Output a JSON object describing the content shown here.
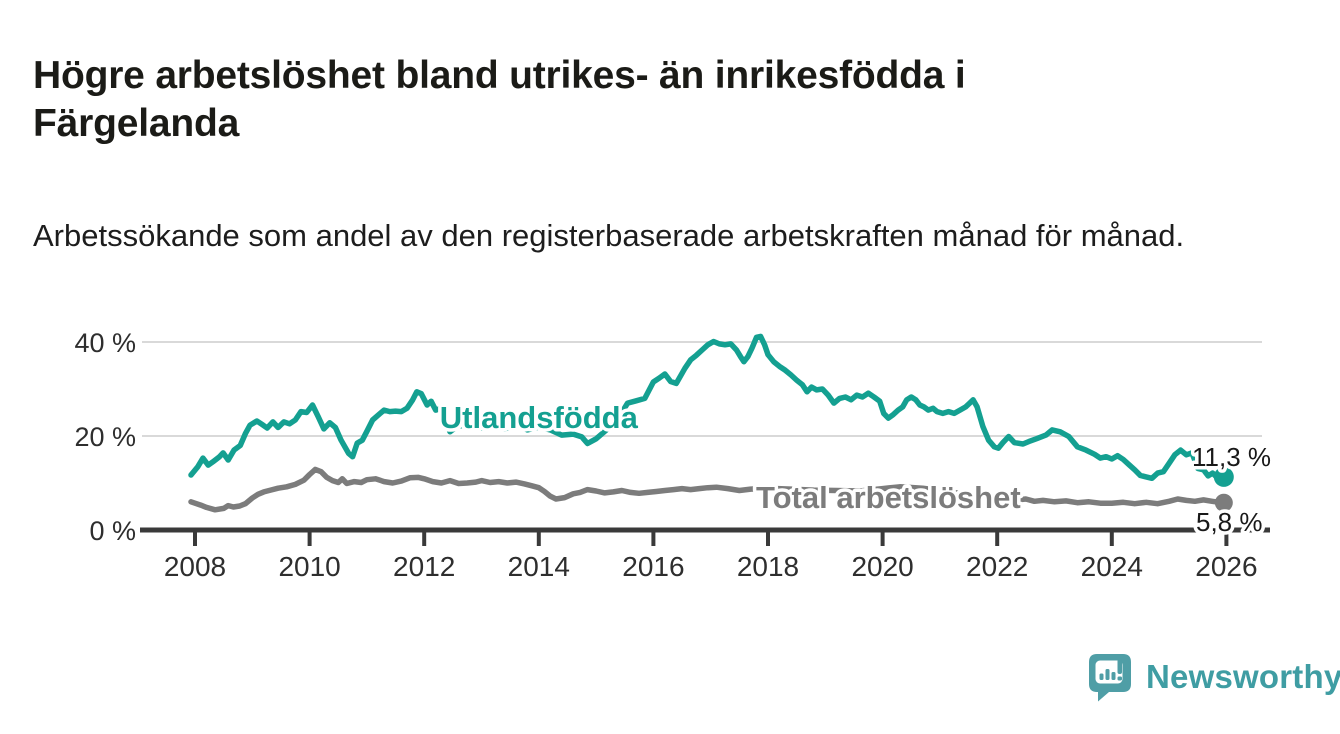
{
  "header": {
    "title": "Högre arbetslöshet bland utrikes- än inrikesfödda i Färgelanda",
    "subtitle": "Arbetssökande som andel av den registerbaserade arbetskraften månad för månad."
  },
  "branding": {
    "logo_text": "Newsworthy",
    "logo_icon": "bar-chart-speech-bubble-icon"
  },
  "colors": {
    "foreign_born_line": "#14a091",
    "total_line": "#7c7c7c",
    "axis": "#3a3a3a",
    "grid": "#d9d9d9",
    "tick_text": "#2e2e2e",
    "value_text": "#191919",
    "logo_teal": "#4f9ea6",
    "logo_text_teal": "#3f9da3",
    "background": "#ffffff"
  },
  "chart_data": {
    "type": "line",
    "unit": "%",
    "grid": "horizontal",
    "legend_position": "inline-labels",
    "ylim": [
      0,
      44
    ],
    "xlim_years": [
      2007.9,
      2026.75
    ],
    "x_ticks": [
      2008,
      2010,
      2012,
      2014,
      2016,
      2018,
      2020,
      2022,
      2024,
      2026
    ],
    "y_ticks": [
      {
        "value": 0,
        "label": "0 %"
      },
      {
        "value": 20,
        "label": "20 %"
      },
      {
        "value": 40,
        "label": "40 %"
      }
    ],
    "series": [
      {
        "name": "Utlandsfödda",
        "color": "#14a091",
        "end_label": "11,3 %",
        "name_label_anchor": {
          "year": 2014.0,
          "value": 21.7
        },
        "points": [
          [
            2007.93,
            11.7
          ],
          [
            2008.05,
            13.5
          ],
          [
            2008.14,
            15.3
          ],
          [
            2008.23,
            13.8
          ],
          [
            2008.31,
            14.5
          ],
          [
            2008.42,
            15.5
          ],
          [
            2008.49,
            16.4
          ],
          [
            2008.58,
            14.9
          ],
          [
            2008.68,
            17.0
          ],
          [
            2008.79,
            18.0
          ],
          [
            2008.88,
            20.5
          ],
          [
            2008.96,
            22.3
          ],
          [
            2009.08,
            23.2
          ],
          [
            2009.19,
            22.3
          ],
          [
            2009.26,
            21.7
          ],
          [
            2009.36,
            23.0
          ],
          [
            2009.45,
            21.8
          ],
          [
            2009.55,
            23.0
          ],
          [
            2009.65,
            22.6
          ],
          [
            2009.75,
            23.4
          ],
          [
            2009.85,
            25.2
          ],
          [
            2009.95,
            25.0
          ],
          [
            2010.05,
            26.6
          ],
          [
            2010.15,
            24.1
          ],
          [
            2010.25,
            21.5
          ],
          [
            2010.35,
            22.8
          ],
          [
            2010.45,
            21.8
          ],
          [
            2010.55,
            19.1
          ],
          [
            2010.68,
            16.3
          ],
          [
            2010.75,
            15.6
          ],
          [
            2010.83,
            18.5
          ],
          [
            2010.92,
            19.1
          ],
          [
            2011.0,
            21.0
          ],
          [
            2011.1,
            23.4
          ],
          [
            2011.2,
            24.5
          ],
          [
            2011.3,
            25.5
          ],
          [
            2011.4,
            25.2
          ],
          [
            2011.5,
            25.3
          ],
          [
            2011.6,
            25.2
          ],
          [
            2011.7,
            25.9
          ],
          [
            2011.8,
            27.7
          ],
          [
            2011.87,
            29.4
          ],
          [
            2011.95,
            29.0
          ],
          [
            2012.05,
            26.6
          ],
          [
            2012.12,
            27.4
          ],
          [
            2012.2,
            25.5
          ],
          [
            2012.3,
            25.9
          ],
          [
            2012.45,
            20.9
          ],
          [
            2012.6,
            22.3
          ],
          [
            2012.8,
            22.0
          ],
          [
            2013.0,
            21.7
          ],
          [
            2013.2,
            22.3
          ],
          [
            2013.4,
            21.5
          ],
          [
            2013.6,
            22.5
          ],
          [
            2013.8,
            21.3
          ],
          [
            2014.0,
            21.9
          ],
          [
            2014.2,
            21.3
          ],
          [
            2014.4,
            20.2
          ],
          [
            2014.6,
            20.4
          ],
          [
            2014.75,
            19.8
          ],
          [
            2014.85,
            18.4
          ],
          [
            2015.0,
            19.4
          ],
          [
            2015.2,
            21.5
          ],
          [
            2015.4,
            24.0
          ],
          [
            2015.55,
            27.0
          ],
          [
            2015.7,
            27.5
          ],
          [
            2015.85,
            28.0
          ],
          [
            2016.0,
            31.5
          ],
          [
            2016.1,
            32.3
          ],
          [
            2016.2,
            33.2
          ],
          [
            2016.3,
            31.6
          ],
          [
            2016.4,
            31.2
          ],
          [
            2016.55,
            34.4
          ],
          [
            2016.65,
            36.2
          ],
          [
            2016.75,
            37.2
          ],
          [
            2016.85,
            38.3
          ],
          [
            2016.95,
            39.4
          ],
          [
            2017.05,
            40.1
          ],
          [
            2017.15,
            39.6
          ],
          [
            2017.25,
            39.4
          ],
          [
            2017.35,
            39.6
          ],
          [
            2017.45,
            38.3
          ],
          [
            2017.52,
            36.9
          ],
          [
            2017.58,
            35.8
          ],
          [
            2017.65,
            36.9
          ],
          [
            2017.72,
            38.7
          ],
          [
            2017.8,
            41.0
          ],
          [
            2017.87,
            41.2
          ],
          [
            2017.94,
            39.4
          ],
          [
            2018.0,
            37.3
          ],
          [
            2018.1,
            35.8
          ],
          [
            2018.2,
            34.8
          ],
          [
            2018.3,
            34.0
          ],
          [
            2018.4,
            33.0
          ],
          [
            2018.5,
            31.9
          ],
          [
            2018.6,
            30.9
          ],
          [
            2018.68,
            29.4
          ],
          [
            2018.76,
            30.4
          ],
          [
            2018.85,
            29.8
          ],
          [
            2018.95,
            30.0
          ],
          [
            2019.05,
            28.7
          ],
          [
            2019.15,
            27.0
          ],
          [
            2019.25,
            28.0
          ],
          [
            2019.35,
            28.3
          ],
          [
            2019.45,
            27.7
          ],
          [
            2019.55,
            28.7
          ],
          [
            2019.65,
            28.3
          ],
          [
            2019.75,
            29.1
          ],
          [
            2019.85,
            28.3
          ],
          [
            2019.95,
            27.4
          ],
          [
            2020.02,
            24.8
          ],
          [
            2020.1,
            23.8
          ],
          [
            2020.18,
            24.5
          ],
          [
            2020.27,
            25.5
          ],
          [
            2020.35,
            26.2
          ],
          [
            2020.42,
            27.7
          ],
          [
            2020.5,
            28.3
          ],
          [
            2020.58,
            27.7
          ],
          [
            2020.65,
            26.6
          ],
          [
            2020.72,
            26.2
          ],
          [
            2020.8,
            25.5
          ],
          [
            2020.88,
            25.9
          ],
          [
            2020.95,
            25.2
          ],
          [
            2021.05,
            24.8
          ],
          [
            2021.15,
            25.2
          ],
          [
            2021.25,
            24.8
          ],
          [
            2021.35,
            25.5
          ],
          [
            2021.45,
            26.2
          ],
          [
            2021.52,
            27.0
          ],
          [
            2021.58,
            27.7
          ],
          [
            2021.65,
            26.2
          ],
          [
            2021.75,
            22.0
          ],
          [
            2021.85,
            19.1
          ],
          [
            2021.95,
            17.7
          ],
          [
            2022.02,
            17.4
          ],
          [
            2022.1,
            18.6
          ],
          [
            2022.2,
            19.9
          ],
          [
            2022.3,
            18.6
          ],
          [
            2022.45,
            18.3
          ],
          [
            2022.55,
            18.8
          ],
          [
            2022.7,
            19.5
          ],
          [
            2022.85,
            20.2
          ],
          [
            2022.96,
            21.3
          ],
          [
            2023.1,
            20.9
          ],
          [
            2023.25,
            19.9
          ],
          [
            2023.4,
            17.7
          ],
          [
            2023.55,
            17.0
          ],
          [
            2023.7,
            16.1
          ],
          [
            2023.8,
            15.3
          ],
          [
            2023.9,
            15.6
          ],
          [
            2024.0,
            15.1
          ],
          [
            2024.1,
            15.8
          ],
          [
            2024.2,
            15.0
          ],
          [
            2024.3,
            13.9
          ],
          [
            2024.4,
            12.8
          ],
          [
            2024.5,
            11.6
          ],
          [
            2024.6,
            11.3
          ],
          [
            2024.7,
            11.0
          ],
          [
            2024.8,
            12.1
          ],
          [
            2024.9,
            12.4
          ],
          [
            2025.0,
            14.2
          ],
          [
            2025.1,
            16.0
          ],
          [
            2025.2,
            17.0
          ],
          [
            2025.3,
            16.0
          ],
          [
            2025.4,
            16.4
          ],
          [
            2025.5,
            13.1
          ],
          [
            2025.6,
            12.8
          ],
          [
            2025.68,
            11.5
          ],
          [
            2025.76,
            12.1
          ],
          [
            2025.85,
            11.0
          ],
          [
            2025.92,
            11.3
          ]
        ]
      },
      {
        "name": "Total arbetslöshet",
        "color": "#7c7c7c",
        "end_label": "5,8 %",
        "name_label_anchor": {
          "year": 2020.1,
          "value": 4.7
        },
        "points": [
          [
            2007.93,
            6.0
          ],
          [
            2008.0,
            5.7
          ],
          [
            2008.1,
            5.3
          ],
          [
            2008.2,
            4.8
          ],
          [
            2008.35,
            4.3
          ],
          [
            2008.5,
            4.6
          ],
          [
            2008.58,
            5.2
          ],
          [
            2008.67,
            4.9
          ],
          [
            2008.78,
            5.1
          ],
          [
            2008.88,
            5.6
          ],
          [
            2009.0,
            6.8
          ],
          [
            2009.1,
            7.6
          ],
          [
            2009.2,
            8.1
          ],
          [
            2009.32,
            8.5
          ],
          [
            2009.45,
            8.9
          ],
          [
            2009.6,
            9.2
          ],
          [
            2009.75,
            9.7
          ],
          [
            2009.9,
            10.6
          ],
          [
            2010.0,
            11.8
          ],
          [
            2010.1,
            12.9
          ],
          [
            2010.2,
            12.4
          ],
          [
            2010.3,
            11.2
          ],
          [
            2010.4,
            10.5
          ],
          [
            2010.5,
            10.1
          ],
          [
            2010.57,
            10.9
          ],
          [
            2010.65,
            9.9
          ],
          [
            2010.78,
            10.3
          ],
          [
            2010.9,
            10.1
          ],
          [
            2011.0,
            10.7
          ],
          [
            2011.15,
            10.9
          ],
          [
            2011.3,
            10.3
          ],
          [
            2011.45,
            10.0
          ],
          [
            2011.6,
            10.4
          ],
          [
            2011.75,
            11.1
          ],
          [
            2011.9,
            11.2
          ],
          [
            2012.0,
            10.9
          ],
          [
            2012.15,
            10.3
          ],
          [
            2012.3,
            10.0
          ],
          [
            2012.45,
            10.5
          ],
          [
            2012.6,
            9.9
          ],
          [
            2012.75,
            10.0
          ],
          [
            2012.9,
            10.2
          ],
          [
            2013.0,
            10.5
          ],
          [
            2013.15,
            10.1
          ],
          [
            2013.3,
            10.3
          ],
          [
            2013.45,
            10.0
          ],
          [
            2013.6,
            10.2
          ],
          [
            2013.75,
            9.8
          ],
          [
            2013.88,
            9.4
          ],
          [
            2014.0,
            9.0
          ],
          [
            2014.1,
            8.2
          ],
          [
            2014.2,
            7.2
          ],
          [
            2014.3,
            6.6
          ],
          [
            2014.45,
            6.9
          ],
          [
            2014.6,
            7.7
          ],
          [
            2014.72,
            8.0
          ],
          [
            2014.85,
            8.6
          ],
          [
            2015.0,
            8.3
          ],
          [
            2015.15,
            7.9
          ],
          [
            2015.3,
            8.1
          ],
          [
            2015.45,
            8.4
          ],
          [
            2015.6,
            8.0
          ],
          [
            2015.75,
            7.8
          ],
          [
            2015.9,
            8.0
          ],
          [
            2016.05,
            8.2
          ],
          [
            2016.2,
            8.4
          ],
          [
            2016.35,
            8.6
          ],
          [
            2016.5,
            8.8
          ],
          [
            2016.65,
            8.6
          ],
          [
            2016.8,
            8.8
          ],
          [
            2016.95,
            9.0
          ],
          [
            2017.1,
            9.1
          ],
          [
            2017.3,
            8.8
          ],
          [
            2017.5,
            8.4
          ],
          [
            2017.7,
            8.7
          ],
          [
            2018.0,
            8.9
          ],
          [
            2018.4,
            8.7
          ],
          [
            2018.8,
            8.5
          ],
          [
            2019.2,
            8.4
          ],
          [
            2019.6,
            8.3
          ],
          [
            2020.0,
            8.8
          ],
          [
            2020.3,
            9.2
          ],
          [
            2020.7,
            8.9
          ],
          [
            2021.0,
            8.4
          ],
          [
            2021.4,
            7.7
          ],
          [
            2021.8,
            7.0
          ],
          [
            2022.1,
            6.7
          ],
          [
            2022.35,
            6.4
          ],
          [
            2022.5,
            6.6
          ],
          [
            2022.65,
            6.1
          ],
          [
            2022.8,
            6.3
          ],
          [
            2023.0,
            6.0
          ],
          [
            2023.2,
            6.2
          ],
          [
            2023.4,
            5.8
          ],
          [
            2023.6,
            6.0
          ],
          [
            2023.8,
            5.7
          ],
          [
            2024.0,
            5.7
          ],
          [
            2024.2,
            5.9
          ],
          [
            2024.4,
            5.6
          ],
          [
            2024.6,
            5.9
          ],
          [
            2024.8,
            5.6
          ],
          [
            2025.0,
            6.1
          ],
          [
            2025.15,
            6.6
          ],
          [
            2025.3,
            6.3
          ],
          [
            2025.45,
            6.1
          ],
          [
            2025.6,
            6.4
          ],
          [
            2025.75,
            6.1
          ],
          [
            2025.92,
            5.8
          ]
        ]
      }
    ]
  }
}
